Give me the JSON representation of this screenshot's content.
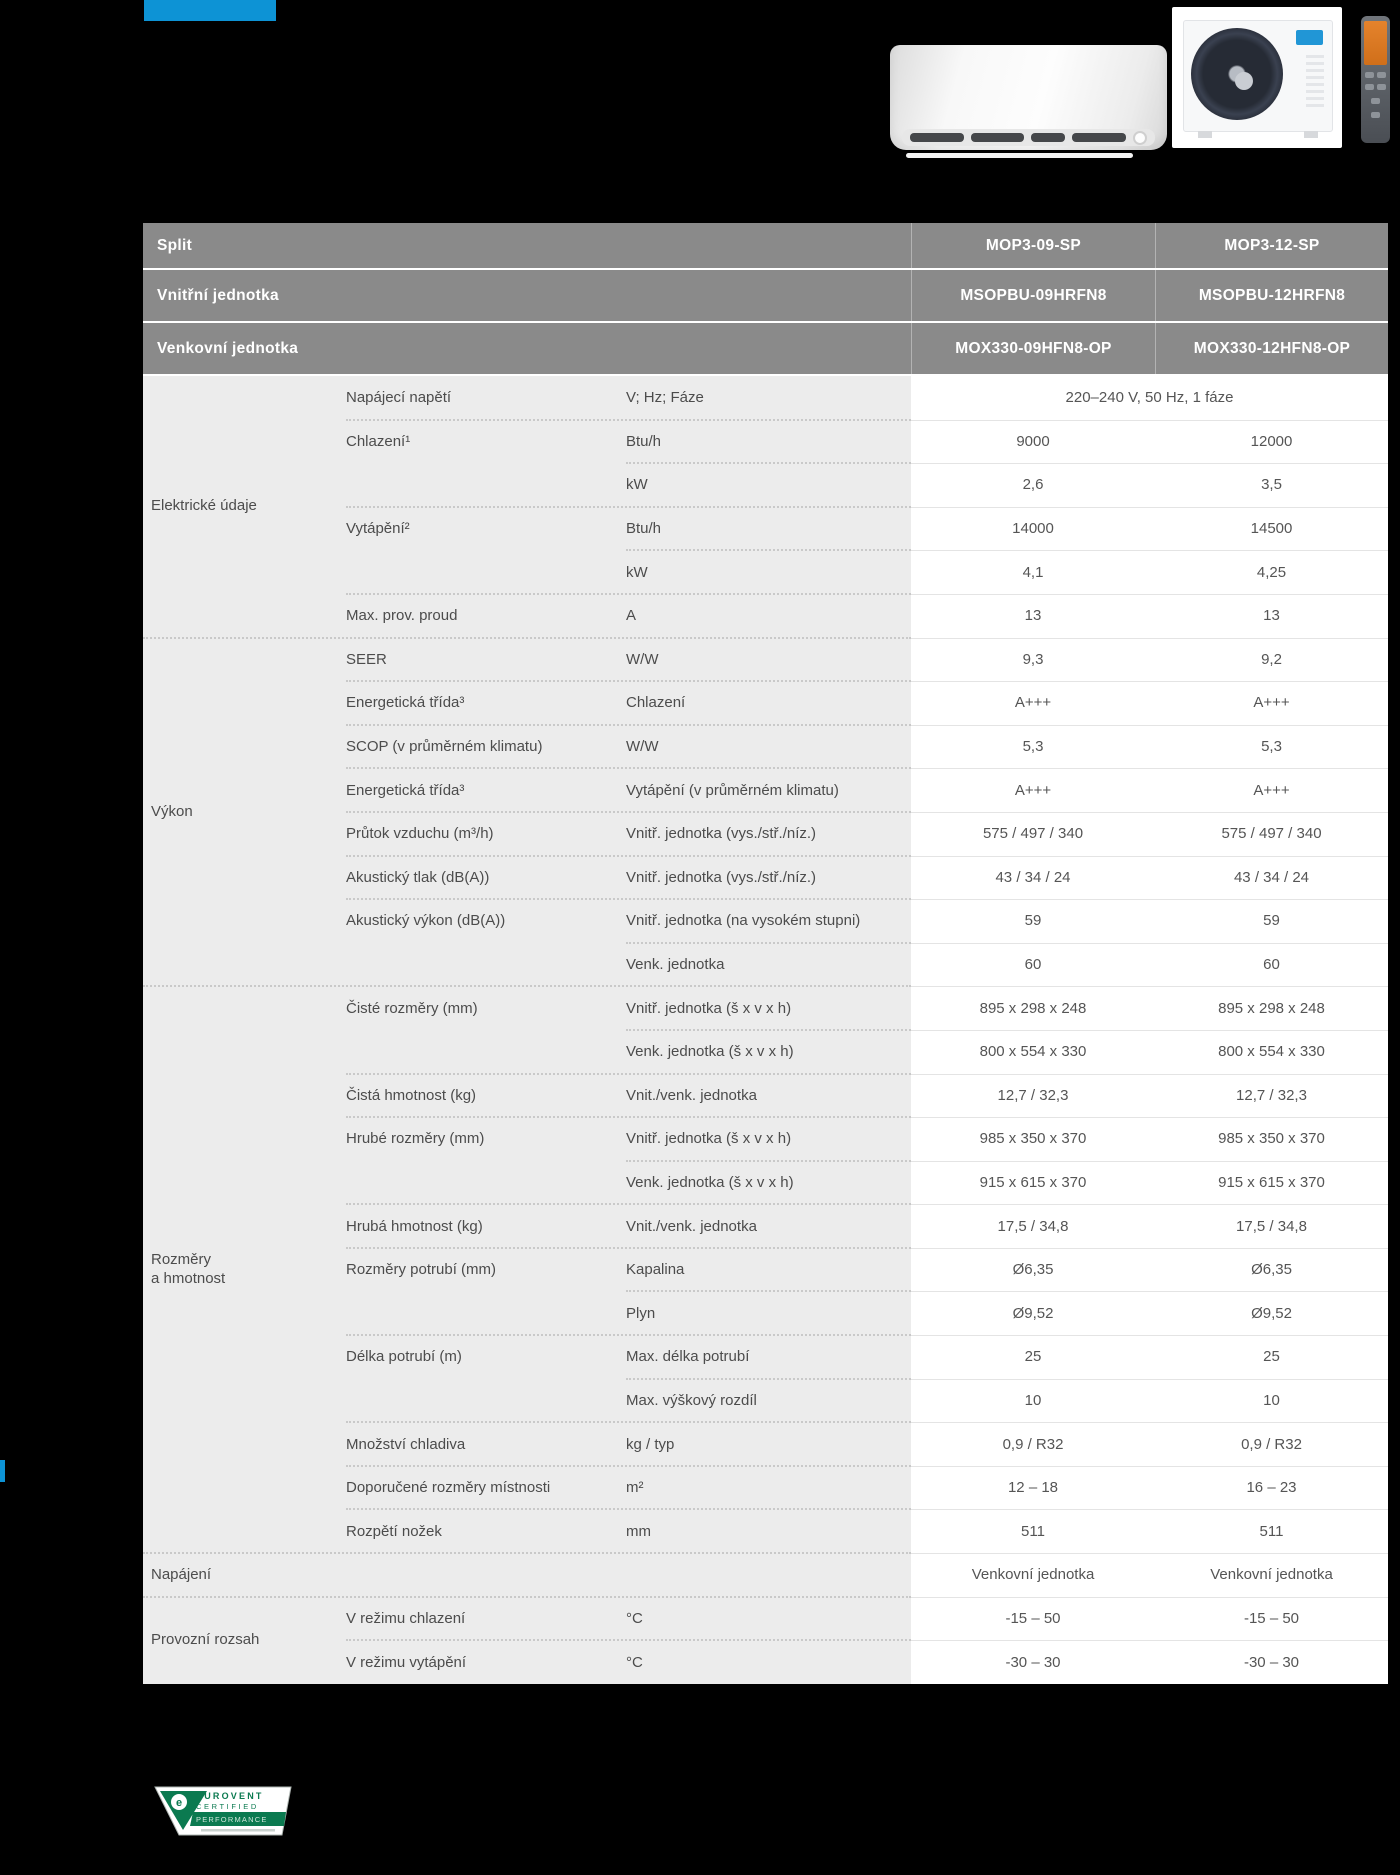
{
  "colors": {
    "accent_blue": "#0d93d5",
    "header_gray": "#8a8a8a",
    "row_gray": "#ececec",
    "value_white": "#ffffff",
    "eurovent_green": "#0b7a50"
  },
  "table": {
    "header_rows": [
      {
        "label": "Split",
        "col1": "MOP3-09-SP",
        "col2": "MOP3-12-SP"
      },
      {
        "label": "Vnitřní jednotka",
        "col1": "MSOPBU-09HRFN8",
        "col2": "MSOPBU-12HRFN8"
      },
      {
        "label": "Venkovní jednotka",
        "col1": "MOX330-09HFN8-OP",
        "col2": "MOX330-12HFN8-OP"
      }
    ],
    "categories": [
      {
        "label": "Elektrické údaje",
        "start": 1,
        "count": 6
      },
      {
        "label": "Výkon",
        "start": 7,
        "count": 8
      },
      {
        "label": "Rozměry\na hmotnost",
        "start": 15,
        "count": 13
      },
      {
        "label": "Napájení",
        "start": 28,
        "count": 1
      },
      {
        "label": "Provozní rozsah",
        "start": 29,
        "count": 2
      }
    ],
    "rows": [
      {
        "param": "Napájecí napětí",
        "unit": "V; Hz; Fáze",
        "v1": "220–240 V, 50 Hz, 1 fáze",
        "v2": "",
        "merged": true,
        "sep": "none"
      },
      {
        "param": "Chlazení¹",
        "unit": "Btu/h",
        "v1": "9000",
        "v2": "12000",
        "sep": "param",
        "param_rows": 2
      },
      {
        "param": "",
        "unit": "kW",
        "v1": "2,6",
        "v2": "3,5",
        "sep": "unit"
      },
      {
        "param": "Vytápění²",
        "unit": "Btu/h",
        "v1": "14000",
        "v2": "14500",
        "sep": "param",
        "param_rows": 2
      },
      {
        "param": "",
        "unit": "kW",
        "v1": "4,1",
        "v2": "4,25",
        "sep": "unit"
      },
      {
        "param": "Max. prov. proud",
        "unit": "A",
        "v1": "13",
        "v2": "13",
        "sep": "param"
      },
      {
        "param": "SEER",
        "unit": "W/W",
        "v1": "9,3",
        "v2": "9,2",
        "sep": "full"
      },
      {
        "param": "Energetická třída³",
        "unit": "Chlazení",
        "v1": "A+++",
        "v2": "A+++",
        "sep": "param"
      },
      {
        "param": "SCOP (v průměrném klimatu)",
        "unit": "W/W",
        "v1": "5,3",
        "v2": "5,3",
        "sep": "param"
      },
      {
        "param": "Energetická třída³",
        "unit": "Vytápění (v průměrném klimatu)",
        "v1": "A+++",
        "v2": "A+++",
        "sep": "param"
      },
      {
        "param": "Průtok vzduchu (m³/h)",
        "unit": "Vnitř. jednotka (vys./stř./níz.)",
        "v1": "575 / 497 / 340",
        "v2": "575 / 497 / 340",
        "sep": "param"
      },
      {
        "param": "Akustický tlak (dB(A))",
        "unit": "Vnitř. jednotka (vys./stř./níz.)",
        "v1": "43 / 34 / 24",
        "v2": "43 / 34 / 24",
        "sep": "param"
      },
      {
        "param": "Akustický výkon (dB(A))",
        "unit": "Vnitř. jednotka (na vysokém stupni)",
        "v1": "59",
        "v2": "59",
        "sep": "param",
        "param_rows": 2
      },
      {
        "param": "",
        "unit": "Venk. jednotka",
        "v1": "60",
        "v2": "60",
        "sep": "unit"
      },
      {
        "param": "Čisté rozměry (mm)",
        "unit": "Vnitř. jednotka (š x v x h)",
        "v1": "895 x 298 x 248",
        "v2": "895 x 298 x 248",
        "sep": "full",
        "param_rows": 2
      },
      {
        "param": "",
        "unit": "Venk. jednotka (š x v x h)",
        "v1": "800 x 554 x 330",
        "v2": "800 x 554 x 330",
        "sep": "unit"
      },
      {
        "param": "Čistá hmotnost (kg)",
        "unit": "Vnit./venk. jednotka",
        "v1": "12,7 / 32,3",
        "v2": "12,7 / 32,3",
        "sep": "param"
      },
      {
        "param": "Hrubé rozměry (mm)",
        "unit": "Vnitř. jednotka (š x v x h)",
        "v1": "985 x 350 x 370",
        "v2": "985 x 350 x 370",
        "sep": "param",
        "param_rows": 2
      },
      {
        "param": "",
        "unit": "Venk. jednotka (š x v x h)",
        "v1": "915 x 615 x 370",
        "v2": "915 x 615 x 370",
        "sep": "unit"
      },
      {
        "param": "Hrubá hmotnost (kg)",
        "unit": "Vnit./venk. jednotka",
        "v1": "17,5 / 34,8",
        "v2": "17,5 / 34,8",
        "sep": "param"
      },
      {
        "param": "Rozměry potrubí (mm)",
        "unit": "Kapalina",
        "v1": "Ø6,35",
        "v2": "Ø6,35",
        "sep": "param",
        "param_rows": 2
      },
      {
        "param": "",
        "unit": "Plyn",
        "v1": "Ø9,52",
        "v2": "Ø9,52",
        "sep": "unit"
      },
      {
        "param": "Délka potrubí (m)",
        "unit": "Max. délka potrubí",
        "v1": "25",
        "v2": "25",
        "sep": "param",
        "param_rows": 2
      },
      {
        "param": "",
        "unit": "Max. výškový rozdíl",
        "v1": "10",
        "v2": "10",
        "sep": "unit"
      },
      {
        "param": "Množství chladiva",
        "unit": "kg / typ",
        "v1": "0,9 / R32",
        "v2": "0,9 / R32",
        "sep": "param"
      },
      {
        "param": "Doporučené rozměry místnosti",
        "unit": "m²",
        "v1": "12 – 18",
        "v2": "16 – 23",
        "sep": "param"
      },
      {
        "param": "Rozpětí nožek",
        "unit": "mm",
        "v1": "511",
        "v2": "511",
        "sep": "param"
      },
      {
        "param": "",
        "unit": "",
        "v1": "Venkovní jednotka",
        "v2": "Venkovní jednotka",
        "sep": "full"
      },
      {
        "param": "V režimu chlazení",
        "unit": "°C",
        "v1": "-15 – 50",
        "v2": "-15 – 50",
        "sep": "full"
      },
      {
        "param": "V režimu vytápění",
        "unit": "°C",
        "v1": "-30 – 30",
        "v2": "-30 – 30",
        "sep": "param"
      }
    ]
  },
  "eurovent": {
    "line1": "EUROVENT",
    "line2": "CERTIFIED",
    "line3": "PERFORMANCE",
    "emblem": "e"
  }
}
